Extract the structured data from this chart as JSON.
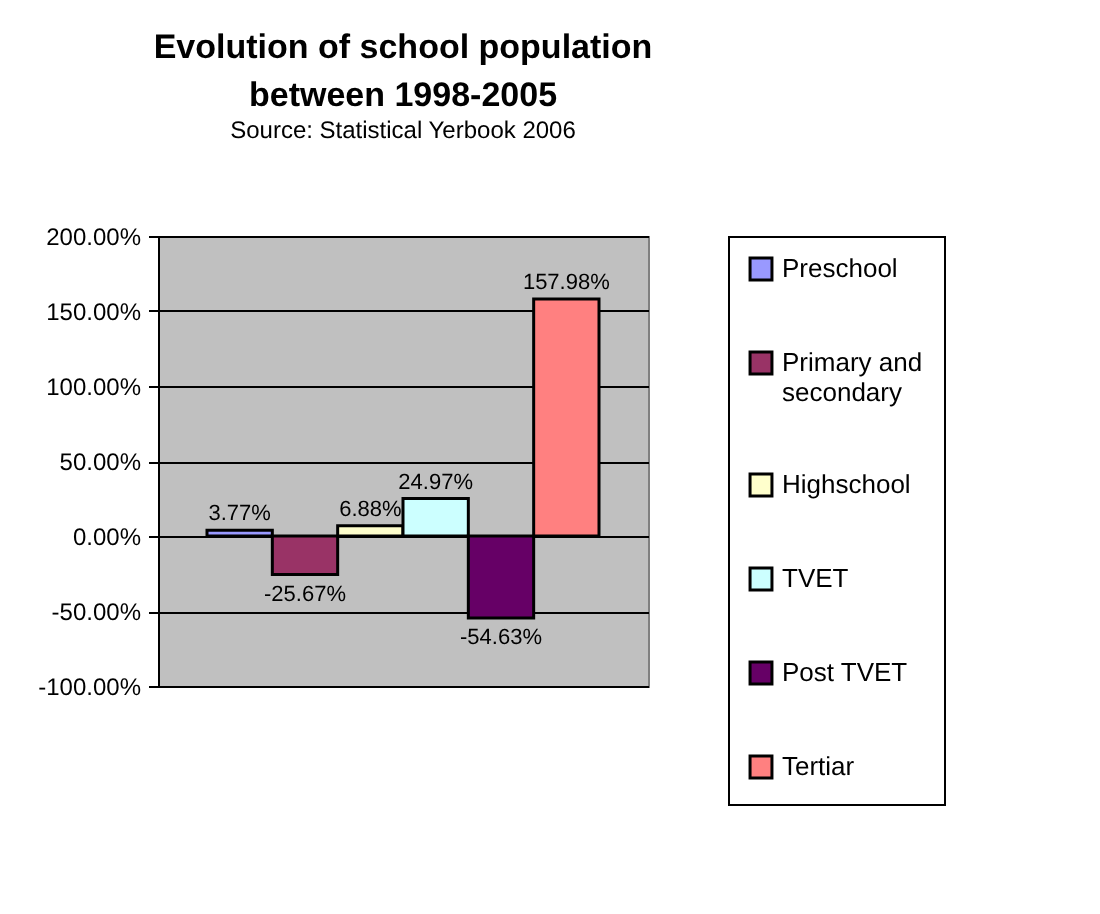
{
  "chart_data": {
    "type": "bar",
    "title": [
      "Evolution of school population",
      "between 1998-2005"
    ],
    "subtitle": "Source: Statistical Yerbook 2006",
    "categories": [
      null
    ],
    "series": [
      {
        "name": "Preschool",
        "color": "#9999ff",
        "values": [
          3.77
        ],
        "value_labels": [
          "3.77%"
        ]
      },
      {
        "name": "Primary and secondary",
        "color": "#993366",
        "values": [
          -25.67
        ],
        "value_labels": [
          "-25.67%"
        ]
      },
      {
        "name": "Highschool",
        "color": "#ffffcc",
        "values": [
          6.88
        ],
        "value_labels": [
          "6.88%"
        ]
      },
      {
        "name": "TVET",
        "color": "#ccffff",
        "values": [
          24.97
        ],
        "value_labels": [
          "24.97%"
        ]
      },
      {
        "name": "Post TVET",
        "color": "#660066",
        "values": [
          -54.63
        ],
        "value_labels": [
          "-54.63%"
        ]
      },
      {
        "name": "Tertiar",
        "color": "#ff8080",
        "values": [
          157.98
        ],
        "value_labels": [
          "157.98%"
        ]
      }
    ],
    "ylim": [
      -100,
      200
    ],
    "yticks": [
      {
        "value": -100,
        "label": "-100.00%"
      },
      {
        "value": -50,
        "label": "-50.00%"
      },
      {
        "value": 0,
        "label": "0.00%"
      },
      {
        "value": 50,
        "label": "50.00%"
      },
      {
        "value": 100,
        "label": "100.00%"
      },
      {
        "value": 150,
        "label": "150.00%"
      },
      {
        "value": 200,
        "label": "200.00%"
      }
    ],
    "grid": "y",
    "legend": "right"
  }
}
